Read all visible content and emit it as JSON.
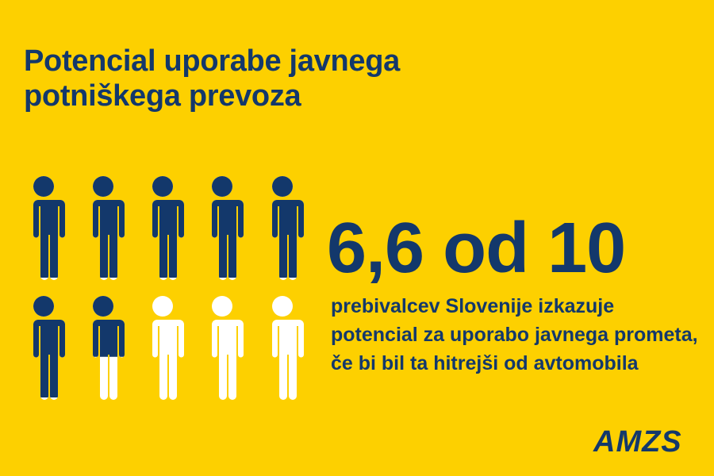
{
  "title": {
    "line1": "Potencial uporabe javnega",
    "line2": "potniškega prevoza"
  },
  "headline": "6,6 od 10",
  "description": "prebivalcev Slovenije izkazuje potencial za uporabo javnega prometa, če bi bil ta hitrejši od avtomobila",
  "logo": "AMZS",
  "pictogram": {
    "total": 10,
    "filled": 6.6,
    "icon": "person-icon"
  },
  "colors": {
    "background": "#fdd000",
    "filled": "#13386b",
    "empty": "#ffffff"
  }
}
